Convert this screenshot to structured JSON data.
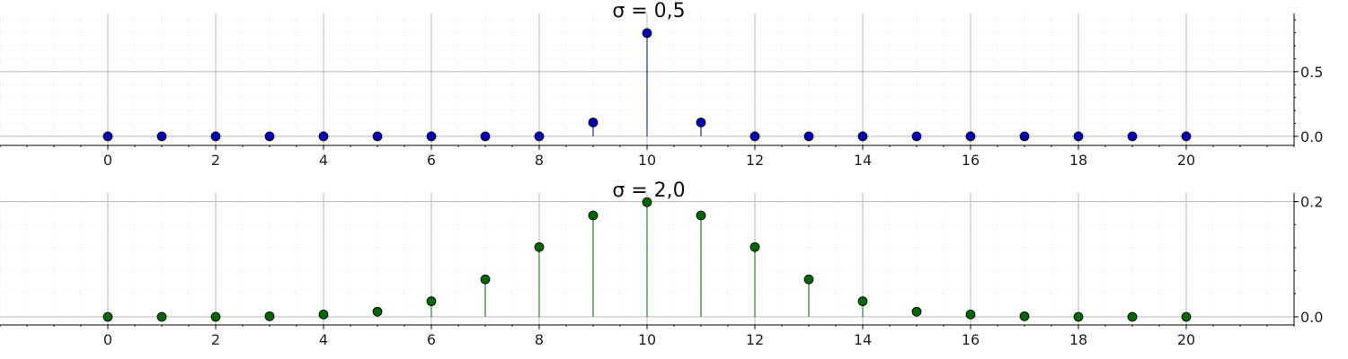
{
  "chart_data": [
    {
      "type": "stem",
      "title": "σ = 0,5",
      "color": "#0000b0",
      "x": [
        0,
        1,
        2,
        3,
        4,
        5,
        6,
        7,
        8,
        9,
        10,
        11,
        12,
        13,
        14,
        15,
        16,
        17,
        18,
        19,
        20
      ],
      "values": [
        0,
        0,
        0,
        0,
        0,
        0,
        0,
        0,
        0,
        0.107,
        0.798,
        0.107,
        0,
        0,
        0,
        0,
        0,
        0,
        0,
        0,
        0
      ],
      "xlim": [
        -2,
        22
      ],
      "ylim": [
        -0.07,
        0.95
      ],
      "x_ticks": [
        0,
        2,
        4,
        6,
        8,
        10,
        12,
        14,
        16,
        18,
        20
      ],
      "x_tick_labels": [
        "0",
        "2",
        "4",
        "6",
        "8",
        "10",
        "12",
        "14",
        "16",
        "18",
        "20"
      ],
      "y_ticks": [
        0.0,
        0.5
      ],
      "y_tick_labels": [
        "0.0",
        "0.5"
      ],
      "y_axis_side": "right",
      "grid": true
    },
    {
      "type": "stem",
      "title": "σ = 2,0",
      "color": "#006400",
      "x": [
        0,
        1,
        2,
        3,
        4,
        5,
        6,
        7,
        8,
        9,
        10,
        11,
        12,
        13,
        14,
        15,
        16,
        17,
        18,
        19,
        20
      ],
      "values": [
        0,
        0,
        0,
        0.001,
        0.004,
        0.009,
        0.027,
        0.065,
        0.121,
        0.176,
        0.199,
        0.176,
        0.121,
        0.065,
        0.027,
        0.009,
        0.004,
        0.001,
        0,
        0,
        0
      ],
      "xlim": [
        -2,
        22
      ],
      "ylim": [
        -0.014,
        0.215
      ],
      "x_ticks": [
        0,
        2,
        4,
        6,
        8,
        10,
        12,
        14,
        16,
        18,
        20
      ],
      "x_tick_labels": [
        "0",
        "2",
        "4",
        "6",
        "8",
        "10",
        "12",
        "14",
        "16",
        "18",
        "20"
      ],
      "y_ticks": [
        0.0,
        0.2
      ],
      "y_tick_labels": [
        "0.0",
        "0.2"
      ],
      "y_axis_side": "right",
      "grid": true
    }
  ]
}
